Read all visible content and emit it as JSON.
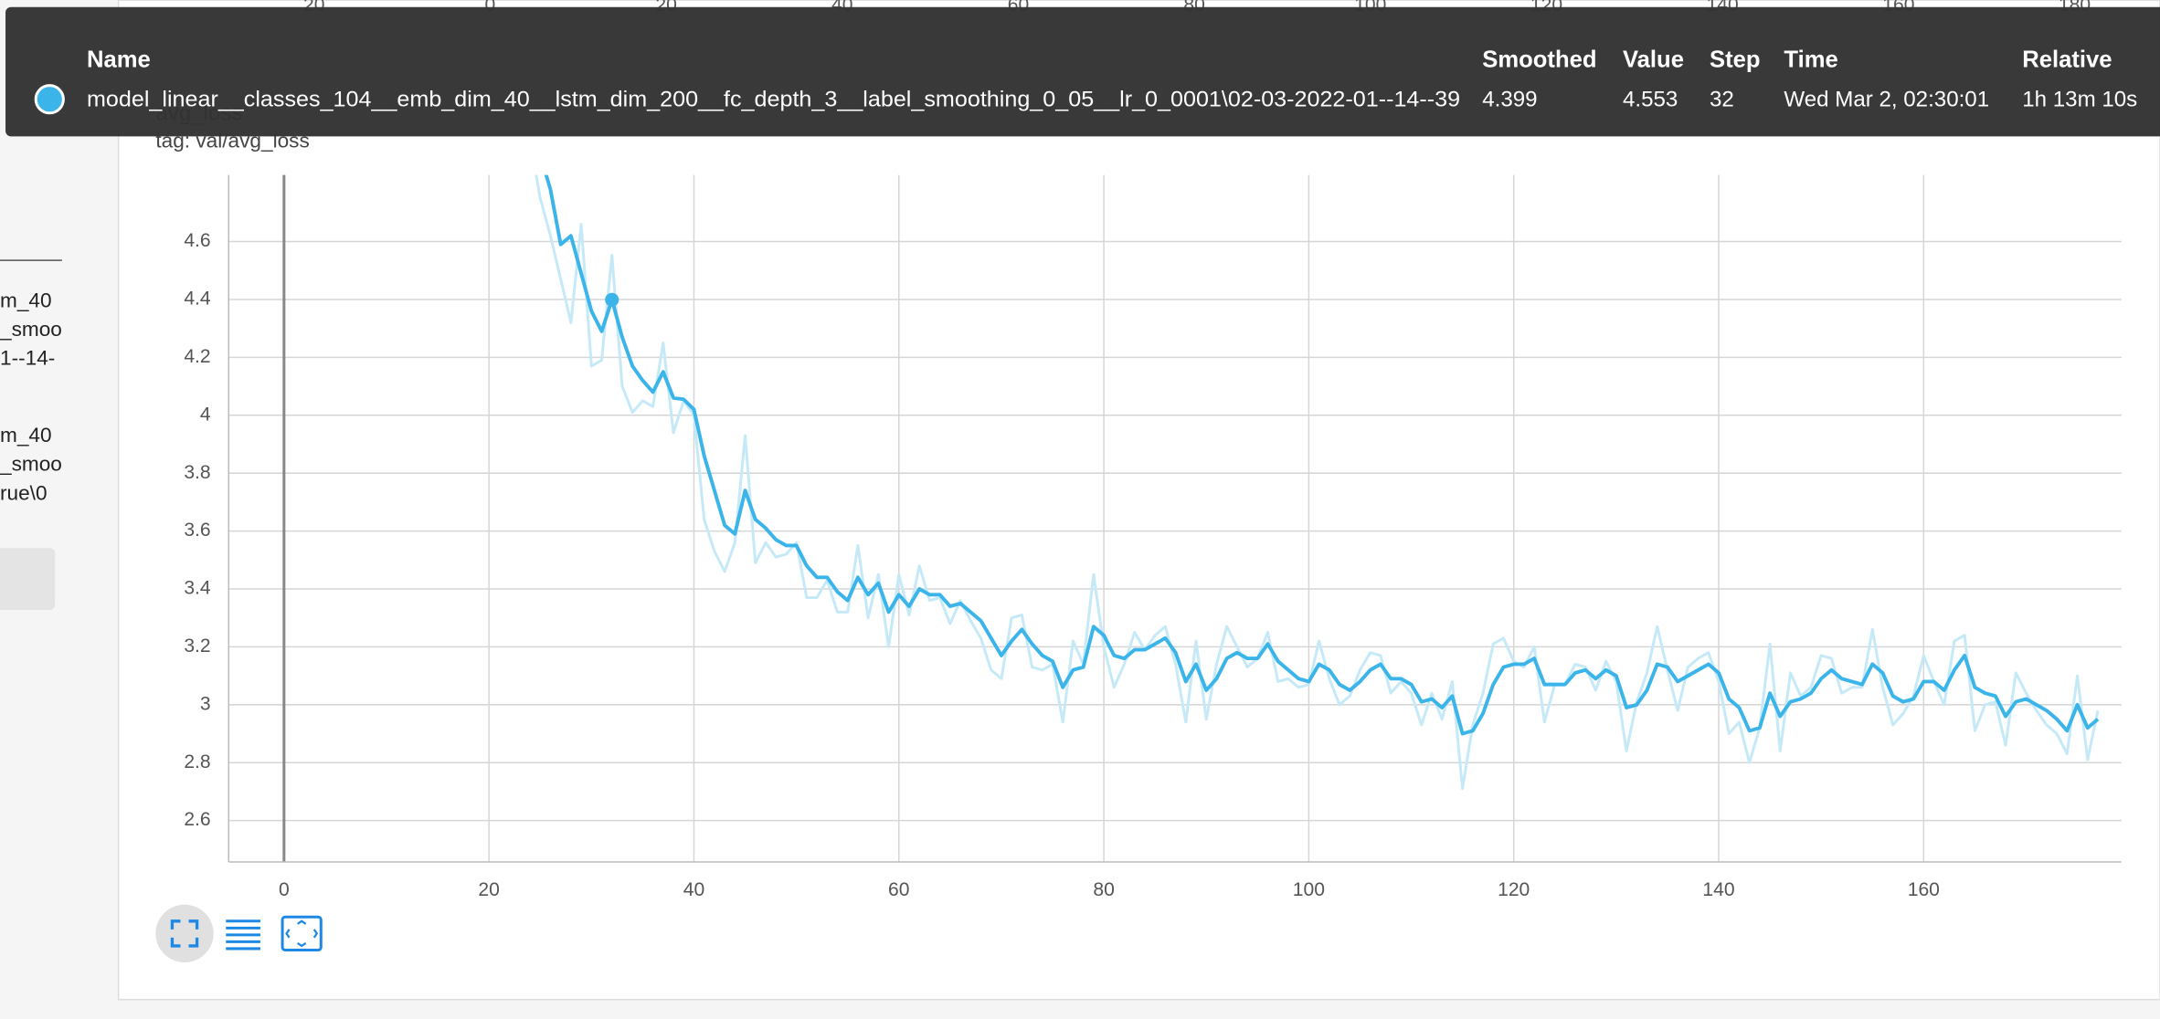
{
  "sidebar": {
    "texts": [
      "m_40",
      "_smoo",
      "1--14-",
      "m_40",
      "_smoo",
      "rue\\0"
    ]
  },
  "card": {
    "title": "avg_loss",
    "tag": "tag: val/avg_loss",
    "above_axis_labels": [
      "20",
      "0",
      "20",
      "40",
      "60",
      "80",
      "100",
      "120",
      "140",
      "160",
      "180"
    ]
  },
  "tooltip": {
    "headers": [
      "Name",
      "Smoothed",
      "Value",
      "Step",
      "Time",
      "Relative"
    ],
    "name": "model_linear__classes_104__emb_dim_40__lstm_dim_200__fc_depth_3__label_smoothing_0_05__lr_0_0001\\02-03-2022-01--14--39",
    "smoothed": 4.399,
    "value": 4.553,
    "step": 32,
    "time": "Wed Mar 2, 02:30:01",
    "relative": "1h 13m 10s"
  },
  "chart_data": {
    "type": "line",
    "x": [
      24,
      25,
      26,
      27,
      28,
      29,
      30,
      31,
      32,
      33,
      34,
      35,
      36,
      37,
      38,
      39,
      40,
      41,
      42,
      43,
      44,
      45,
      46,
      47,
      48,
      49,
      50,
      51,
      52,
      53,
      54,
      55,
      56,
      57,
      58,
      59,
      60,
      61,
      62,
      63,
      64,
      65,
      66,
      67,
      68,
      69,
      70,
      71,
      72,
      73,
      74,
      75,
      76,
      77,
      78,
      79,
      80,
      81,
      82,
      83,
      84,
      85,
      86,
      87,
      88,
      89,
      90,
      91,
      92,
      93,
      94,
      95,
      96,
      97,
      98,
      99,
      100,
      101,
      102,
      103,
      104,
      105,
      106,
      107,
      108,
      109,
      110,
      111,
      112,
      113,
      114,
      115,
      116,
      117,
      118,
      119,
      120,
      121,
      122,
      123,
      124,
      125,
      126,
      127,
      128,
      129,
      130,
      131,
      132,
      133,
      134,
      135,
      136,
      137,
      138,
      139,
      140,
      141,
      142,
      143,
      144,
      145,
      146,
      147,
      148,
      149,
      150,
      151,
      152,
      153,
      154,
      155,
      156,
      157,
      158,
      159,
      160,
      161,
      162,
      163,
      164,
      165,
      166,
      167,
      168,
      169,
      170,
      171,
      172,
      173,
      174,
      175,
      176,
      177
    ],
    "series": [
      {
        "color": "#c6e9f8",
        "values": [
          4.95,
          4.75,
          4.62,
          4.47,
          4.32,
          4.66,
          4.17,
          4.19,
          4.553,
          4.1,
          4.01,
          4.05,
          4.03,
          4.25,
          3.94,
          4.05,
          4.0,
          3.64,
          3.53,
          3.46,
          3.56,
          3.93,
          3.49,
          3.56,
          3.51,
          3.52,
          3.56,
          3.37,
          3.37,
          3.43,
          3.32,
          3.32,
          3.55,
          3.3,
          3.45,
          3.2,
          3.45,
          3.31,
          3.48,
          3.36,
          3.37,
          3.28,
          3.36,
          3.29,
          3.23,
          3.12,
          3.09,
          3.3,
          3.31,
          3.13,
          3.12,
          3.14,
          2.94,
          3.22,
          3.14,
          3.45,
          3.2,
          3.06,
          3.14,
          3.25,
          3.19,
          3.24,
          3.27,
          3.14,
          2.94,
          3.22,
          2.95,
          3.14,
          3.27,
          3.2,
          3.13,
          3.16,
          3.25,
          3.08,
          3.09,
          3.06,
          3.07,
          3.22,
          3.09,
          3.0,
          3.03,
          3.12,
          3.18,
          3.17,
          3.04,
          3.08,
          3.04,
          2.93,
          3.04,
          2.95,
          3.08,
          2.71,
          2.93,
          3.04,
          3.21,
          3.23,
          3.15,
          3.13,
          3.2,
          2.94,
          3.07,
          3.07,
          3.14,
          3.13,
          3.05,
          3.15,
          3.08,
          2.84,
          3.01,
          3.11,
          3.27,
          3.12,
          2.98,
          3.13,
          3.16,
          3.18,
          3.08,
          2.9,
          2.94,
          2.8,
          2.92,
          3.21,
          2.84,
          3.11,
          3.03,
          3.06,
          3.17,
          3.16,
          3.04,
          3.06,
          3.06,
          3.26,
          3.06,
          2.93,
          2.97,
          3.03,
          3.17,
          3.08,
          3.0,
          3.22,
          3.24,
          2.91,
          3.0,
          3.01,
          2.86,
          3.11,
          3.04,
          2.98,
          2.93,
          2.9,
          2.83,
          3.1,
          2.81,
          2.98
        ]
      },
      {
        "color": "#3ab4e9",
        "values": [
          5.02,
          4.9,
          4.78,
          4.59,
          4.62,
          4.49,
          4.36,
          4.29,
          4.399,
          4.27,
          4.17,
          4.12,
          4.08,
          4.15,
          4.06,
          4.055,
          4.02,
          3.86,
          3.74,
          3.62,
          3.59,
          3.74,
          3.64,
          3.61,
          3.57,
          3.55,
          3.55,
          3.48,
          3.44,
          3.44,
          3.39,
          3.36,
          3.44,
          3.38,
          3.42,
          3.32,
          3.38,
          3.34,
          3.4,
          3.38,
          3.38,
          3.34,
          3.35,
          3.32,
          3.29,
          3.23,
          3.17,
          3.22,
          3.26,
          3.21,
          3.17,
          3.15,
          3.06,
          3.12,
          3.13,
          3.27,
          3.24,
          3.17,
          3.16,
          3.19,
          3.19,
          3.21,
          3.23,
          3.18,
          3.08,
          3.14,
          3.05,
          3.09,
          3.16,
          3.18,
          3.16,
          3.16,
          3.21,
          3.15,
          3.12,
          3.09,
          3.08,
          3.14,
          3.12,
          3.07,
          3.05,
          3.08,
          3.12,
          3.14,
          3.09,
          3.09,
          3.07,
          3.01,
          3.02,
          2.99,
          3.03,
          2.9,
          2.91,
          2.97,
          3.07,
          3.13,
          3.14,
          3.14,
          3.16,
          3.07,
          3.07,
          3.07,
          3.11,
          3.12,
          3.09,
          3.12,
          3.1,
          2.99,
          3.0,
          3.05,
          3.14,
          3.13,
          3.08,
          3.1,
          3.12,
          3.14,
          3.11,
          3.02,
          2.99,
          2.91,
          2.92,
          3.04,
          2.96,
          3.01,
          3.02,
          3.04,
          3.09,
          3.12,
          3.09,
          3.08,
          3.07,
          3.14,
          3.11,
          3.03,
          3.01,
          3.02,
          3.08,
          3.08,
          3.05,
          3.12,
          3.17,
          3.06,
          3.04,
          3.03,
          2.96,
          3.01,
          3.02,
          3.0,
          2.98,
          2.95,
          2.91,
          3.0,
          2.92,
          2.95
        ]
      }
    ],
    "xlim": [
      -5.4,
      179.3
    ],
    "ylim": [
      2.457,
      4.83
    ],
    "xticks": [
      0,
      20,
      40,
      60,
      80,
      100,
      120,
      140,
      160
    ],
    "yticks": [
      2.6,
      2.8,
      3,
      3.2,
      3.4,
      3.6,
      3.8,
      4,
      4.2,
      4.4,
      4.6
    ],
    "grid": true
  }
}
